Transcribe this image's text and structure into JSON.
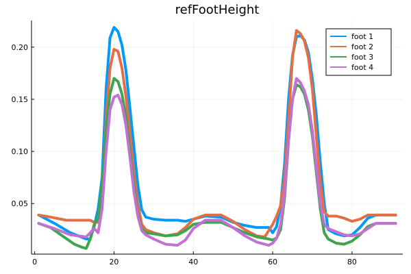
{
  "chart_data": {
    "type": "line",
    "title": "refFootHeight",
    "xlabel": "",
    "ylabel": "",
    "xlim": [
      -0.8,
      92.8
    ],
    "ylim": [
      0.0015,
      0.2255
    ],
    "xticks": [
      0,
      20,
      40,
      60,
      80
    ],
    "xtick_labels": [
      "0",
      "20",
      "40",
      "60",
      "80"
    ],
    "yticks": [
      0.05,
      0.1,
      0.15,
      0.2
    ],
    "ytick_labels": [
      "0.05",
      "0.10",
      "0.15",
      "0.20"
    ],
    "grid": true,
    "legend_position": "top-right",
    "series": [
      {
        "name": "foot 1",
        "color": "#009AFA",
        "x": [
          1,
          5,
          9,
          13,
          14,
          15,
          16,
          17,
          18,
          19,
          20,
          21,
          22,
          23,
          24,
          25,
          26,
          27,
          28,
          30,
          33,
          36,
          38,
          40,
          43,
          47,
          50,
          53,
          56,
          59,
          60,
          61,
          62,
          63,
          64,
          65,
          66,
          67,
          68,
          69,
          70,
          71,
          72,
          73,
          74,
          76,
          78,
          80,
          82,
          84,
          86,
          88,
          91
        ],
        "y": [
          0.039,
          0.031,
          0.022,
          0.016,
          0.016,
          0.028,
          0.045,
          0.075,
          0.16,
          0.209,
          0.219,
          0.215,
          0.202,
          0.178,
          0.142,
          0.105,
          0.068,
          0.044,
          0.037,
          0.035,
          0.034,
          0.034,
          0.033,
          0.035,
          0.038,
          0.037,
          0.032,
          0.029,
          0.027,
          0.027,
          0.022,
          0.028,
          0.048,
          0.088,
          0.15,
          0.192,
          0.21,
          0.211,
          0.207,
          0.195,
          0.17,
          0.135,
          0.09,
          0.05,
          0.025,
          0.021,
          0.019,
          0.02,
          0.027,
          0.036,
          0.039,
          0.039,
          0.039
        ]
      },
      {
        "name": "foot 2",
        "color": "#E26F46",
        "x": [
          1,
          4,
          8,
          12,
          14,
          15,
          16,
          17,
          18,
          19,
          20,
          21,
          22,
          23,
          24,
          25,
          26,
          27,
          28,
          30,
          33,
          36,
          38,
          40,
          43,
          47,
          50,
          53,
          56,
          58,
          60,
          61,
          62,
          63,
          64,
          65,
          66,
          67,
          68,
          69,
          70,
          71,
          72,
          73,
          74,
          76,
          78,
          80,
          82,
          84,
          86,
          88,
          91
        ],
        "y": [
          0.039,
          0.037,
          0.034,
          0.034,
          0.034,
          0.032,
          0.032,
          0.06,
          0.13,
          0.18,
          0.198,
          0.196,
          0.18,
          0.153,
          0.118,
          0.08,
          0.05,
          0.03,
          0.025,
          0.022,
          0.019,
          0.021,
          0.027,
          0.035,
          0.039,
          0.039,
          0.033,
          0.025,
          0.019,
          0.018,
          0.03,
          0.038,
          0.048,
          0.075,
          0.13,
          0.19,
          0.216,
          0.213,
          0.206,
          0.19,
          0.16,
          0.115,
          0.07,
          0.042,
          0.038,
          0.038,
          0.036,
          0.033,
          0.035,
          0.039,
          0.039,
          0.039,
          0.039
        ]
      },
      {
        "name": "foot 3",
        "color": "#3EA44E",
        "x": [
          1,
          4,
          7,
          10,
          12,
          13,
          14,
          15,
          16,
          17,
          18,
          19,
          20,
          21,
          22,
          23,
          24,
          25,
          26,
          27,
          28,
          30,
          33,
          36,
          38,
          40,
          43,
          47,
          50,
          53,
          56,
          59,
          60,
          61,
          62,
          63,
          64,
          65,
          66,
          67,
          68,
          69,
          70,
          71,
          72,
          73,
          74,
          76,
          78,
          80,
          82,
          84,
          86,
          88,
          91
        ],
        "y": [
          0.031,
          0.027,
          0.019,
          0.011,
          0.008,
          0.007,
          0.016,
          0.03,
          0.036,
          0.07,
          0.12,
          0.155,
          0.17,
          0.167,
          0.155,
          0.133,
          0.102,
          0.068,
          0.04,
          0.026,
          0.022,
          0.021,
          0.019,
          0.02,
          0.024,
          0.03,
          0.032,
          0.032,
          0.027,
          0.022,
          0.018,
          0.016,
          0.015,
          0.017,
          0.025,
          0.055,
          0.11,
          0.15,
          0.164,
          0.162,
          0.155,
          0.14,
          0.115,
          0.08,
          0.045,
          0.022,
          0.016,
          0.012,
          0.011,
          0.014,
          0.02,
          0.028,
          0.031,
          0.031,
          0.031
        ]
      },
      {
        "name": "foot 4",
        "color": "#C271D2",
        "x": [
          1,
          5,
          9,
          13,
          14,
          15,
          16,
          17,
          18,
          19,
          20,
          21,
          22,
          23,
          24,
          25,
          26,
          27,
          28,
          30,
          33,
          36,
          38,
          40,
          43,
          47,
          50,
          53,
          56,
          59,
          60,
          61,
          62,
          63,
          64,
          65,
          66,
          67,
          68,
          69,
          70,
          71,
          72,
          73,
          74,
          76,
          78,
          80,
          82,
          84,
          86,
          88,
          91
        ],
        "y": [
          0.031,
          0.026,
          0.02,
          0.018,
          0.022,
          0.026,
          0.022,
          0.045,
          0.1,
          0.14,
          0.152,
          0.154,
          0.145,
          0.125,
          0.095,
          0.062,
          0.038,
          0.024,
          0.02,
          0.016,
          0.011,
          0.01,
          0.015,
          0.026,
          0.034,
          0.034,
          0.027,
          0.019,
          0.013,
          0.01,
          0.012,
          0.017,
          0.03,
          0.06,
          0.11,
          0.15,
          0.17,
          0.166,
          0.158,
          0.145,
          0.12,
          0.085,
          0.05,
          0.03,
          0.026,
          0.023,
          0.02,
          0.019,
          0.021,
          0.026,
          0.031,
          0.031,
          0.031
        ]
      }
    ]
  }
}
